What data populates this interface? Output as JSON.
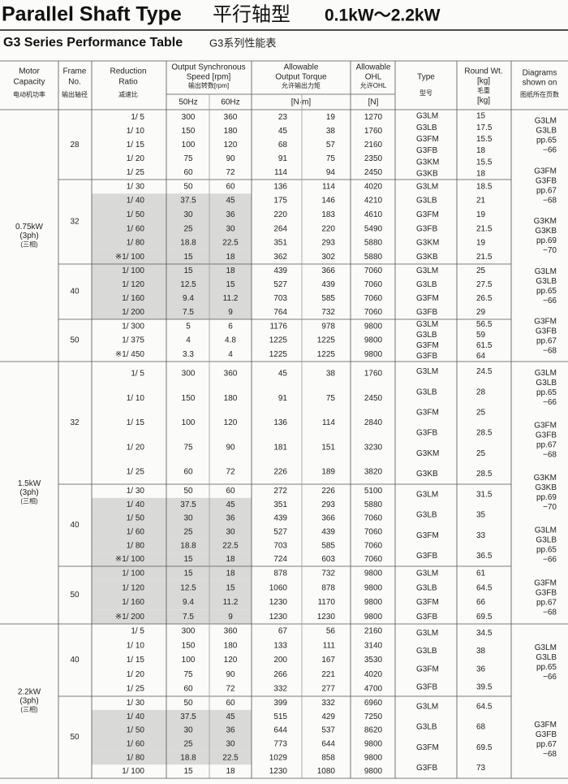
{
  "title": {
    "en": "Parallel Shaft Type",
    "cn": "平行轴型",
    "range": "0.1kW～2.2kW"
  },
  "subtitle": {
    "en": "G3 Series Performance Table",
    "cn": "G3系列性能表"
  },
  "header": {
    "motor": {
      "en": [
        "Motor",
        "Capacity"
      ],
      "cn": "电动机功率"
    },
    "frame": {
      "en": [
        "Frame",
        "No."
      ],
      "cn": "输出轴径"
    },
    "ratio": {
      "en": [
        "Reduction",
        "Ratio"
      ],
      "cn": "减速比"
    },
    "speed": {
      "en": [
        "Output Synchronous",
        "Speed [rpm]"
      ],
      "cn": "输出转数[rpm]",
      "sub": [
        "50Hz",
        "60Hz"
      ]
    },
    "torque": {
      "en": [
        "Allowable",
        "Output Torque"
      ],
      "cn": "允许输出力矩",
      "unit": "[N·m]"
    },
    "ohl": {
      "en": [
        "Allowable",
        "OHL"
      ],
      "cn": "允许OHL",
      "unit": "[N]"
    },
    "type": {
      "en": [
        "Type"
      ],
      "cn": "型号"
    },
    "weight": {
      "en": [
        "Round Wt.",
        "[kg]"
      ],
      "cn": "毛重",
      "unit": "[kg]"
    },
    "diagrams": {
      "en": [
        "Diagrams",
        "shown on"
      ],
      "cn": "图纸所在页数"
    }
  },
  "sections": [
    {
      "motor": [
        "0.75kW",
        "(3ph)",
        "(三相)"
      ],
      "frames": [
        {
          "frame": 28,
          "rows": [
            {
              "cells": [
                "1/ 5",
                300,
                360,
                23,
                19,
                1270
              ]
            },
            {
              "cells": [
                "1/ 10",
                150,
                180,
                45,
                38,
                1760
              ]
            },
            {
              "cells": [
                "1/ 15",
                100,
                120,
                68,
                57,
                2160
              ]
            },
            {
              "cells": [
                "1/ 20",
                75,
                90,
                91,
                75,
                2350
              ]
            },
            {
              "cells": [
                "1/ 25",
                60,
                72,
                114,
                94,
                2450
              ]
            }
          ],
          "types": [
            "G3LM",
            "G3LB",
            "G3FM",
            "G3FB",
            "G3KM",
            "G3KB"
          ],
          "weights": [
            15,
            17.5,
            15.5,
            18,
            15.5,
            18
          ]
        },
        {
          "frame": 32,
          "rows": [
            {
              "cells": [
                "1/ 30",
                50,
                60,
                136,
                114,
                4020
              ]
            },
            {
              "cells": [
                "1/ 40",
                37.5,
                45,
                175,
                146,
                4210
              ],
              "shaded": true
            },
            {
              "cells": [
                "1/ 50",
                30,
                36,
                220,
                183,
                4610
              ],
              "shaded": true
            },
            {
              "cells": [
                "1/ 60",
                25,
                30,
                264,
                220,
                5490
              ],
              "shaded": true
            },
            {
              "cells": [
                "1/ 80",
                18.8,
                22.5,
                351,
                293,
                5880
              ],
              "shaded": true
            },
            {
              "cells": [
                "※1/ 100",
                15,
                18,
                362,
                302,
                5880
              ],
              "shaded": true
            }
          ],
          "types": [
            "G3LM",
            "G3LB",
            "G3FM",
            "G3FB",
            "G3KM",
            "G3KB"
          ],
          "weights": [
            18.5,
            21,
            19,
            21.5,
            19,
            21.5
          ]
        },
        {
          "frame": 40,
          "rows": [
            {
              "cells": [
                "1/ 100",
                15,
                18,
                439,
                366,
                7060
              ],
              "shaded": true
            },
            {
              "cells": [
                "1/ 120",
                12.5,
                15,
                527,
                439,
                7060
              ],
              "shaded": true
            },
            {
              "cells": [
                "1/ 160",
                9.4,
                11.2,
                703,
                585,
                7060
              ],
              "shaded": true
            },
            {
              "cells": [
                "1/ 200",
                7.5,
                9,
                764,
                732,
                7060
              ],
              "shaded": true
            }
          ],
          "types": [
            "G3LM",
            "G3LB",
            "G3FM",
            "G3FB"
          ],
          "weights": [
            25,
            27.5,
            26.5,
            29
          ]
        },
        {
          "frame": 50,
          "rows": [
            {
              "cells": [
                "1/ 300",
                5,
                6,
                1176,
                978,
                9800
              ]
            },
            {
              "cells": [
                "1/ 375",
                4,
                4.8,
                1225,
                1225,
                9800
              ]
            },
            {
              "cells": [
                "※1/ 450",
                3.3,
                4,
                1225,
                1225,
                9800
              ]
            }
          ],
          "types": [
            "G3LM",
            "G3LB",
            "G3FM",
            "G3FB"
          ],
          "weights": [
            56.5,
            59,
            61.5,
            64
          ]
        }
      ],
      "diagrams": [
        [
          "G3LM",
          "G3LB",
          "pp.65",
          "−66"
        ],
        [
          "G3FM",
          "G3FB",
          "pp.67",
          "−68"
        ],
        [
          "G3KM",
          "G3KB",
          "pp.69",
          "−70"
        ],
        [
          "G3LM",
          "G3LB",
          "pp.65",
          "−66"
        ],
        [
          "G3FM",
          "G3FB",
          "pp.67",
          "−68"
        ]
      ]
    },
    {
      "motor": [
        "1.5kW",
        "(3ph)",
        "(三相)"
      ],
      "frames": [
        {
          "frame": 32,
          "rows": [
            {
              "cells": [
                "1/ 5",
                300,
                360,
                45,
                38,
                1760
              ]
            },
            {
              "cells": [
                "1/ 10",
                150,
                180,
                91,
                75,
                2450
              ]
            },
            {
              "cells": [
                "1/ 15",
                100,
                120,
                136,
                114,
                2840
              ]
            },
            {
              "cells": [
                "1/ 20",
                75,
                90,
                181,
                151,
                3230
              ]
            },
            {
              "cells": [
                "1/ 25",
                60,
                72,
                226,
                189,
                3820
              ]
            }
          ],
          "types": [
            "G3LM",
            "G3LB",
            "G3FM",
            "G3FB",
            "G3KM",
            "G3KB"
          ],
          "weights": [
            24.5,
            28,
            25,
            28.5,
            25,
            28.5
          ]
        },
        {
          "frame": 40,
          "rows": [
            {
              "cells": [
                "1/ 30",
                50,
                60,
                272,
                226,
                5100
              ]
            },
            {
              "cells": [
                "1/ 40",
                37.5,
                45,
                351,
                293,
                5880
              ],
              "shaded": true
            },
            {
              "cells": [
                "1/ 50",
                30,
                36,
                439,
                366,
                7060
              ],
              "shaded": true
            },
            {
              "cells": [
                "1/ 60",
                25,
                30,
                527,
                439,
                7060
              ],
              "shaded": true
            },
            {
              "cells": [
                "1/ 80",
                18.8,
                22.5,
                703,
                585,
                7060
              ],
              "shaded": true
            },
            {
              "cells": [
                "※1/ 100",
                15,
                18,
                724,
                603,
                7060
              ],
              "shaded": true
            }
          ],
          "types": [
            "G3LM",
            "G3LB",
            "G3FM",
            "G3FB"
          ],
          "weights": [
            31.5,
            35,
            33,
            36.5
          ]
        },
        {
          "frame": 50,
          "rows": [
            {
              "cells": [
                "1/ 100",
                15,
                18,
                878,
                732,
                9800
              ],
              "shaded": true
            },
            {
              "cells": [
                "1/ 120",
                12.5,
                15,
                1060,
                878,
                9800
              ],
              "shaded": true
            },
            {
              "cells": [
                "1/ 160",
                9.4,
                11.2,
                1230,
                1170,
                9800
              ],
              "shaded": true
            },
            {
              "cells": [
                "※1/ 200",
                7.5,
                9,
                1230,
                1230,
                9800
              ],
              "shaded": true
            }
          ],
          "types": [
            "G3LM",
            "G3LB",
            "G3FM",
            "G3FB"
          ],
          "weights": [
            61,
            64.5,
            66,
            69.5
          ]
        }
      ],
      "diagrams": [
        [
          "G3LM",
          "G3LB",
          "pp.65",
          "−66"
        ],
        [
          "G3FM",
          "G3FB",
          "pp.67",
          "−68"
        ],
        [
          "G3KM",
          "G3KB",
          "pp.69",
          "−70"
        ],
        [
          "G3LM",
          "G3LB",
          "pp.65",
          "−66"
        ],
        [
          "G3FM",
          "G3FB",
          "pp.67",
          "−68"
        ]
      ]
    },
    {
      "motor": [
        "2.2kW",
        "(3ph)",
        "(三相)"
      ],
      "frames": [
        {
          "frame": 40,
          "rows": [
            {
              "cells": [
                "1/ 5",
                300,
                360,
                67,
                56,
                2160
              ]
            },
            {
              "cells": [
                "1/ 10",
                150,
                180,
                133,
                111,
                3140
              ]
            },
            {
              "cells": [
                "1/ 15",
                100,
                120,
                200,
                167,
                3530
              ]
            },
            {
              "cells": [
                "1/ 20",
                75,
                90,
                266,
                221,
                4020
              ]
            },
            {
              "cells": [
                "1/ 25",
                60,
                72,
                332,
                277,
                4700
              ]
            }
          ],
          "types": [
            "G3LM",
            "G3LB",
            "G3FM",
            "G3FB"
          ],
          "weights": [
            34.5,
            38,
            36,
            39.5
          ]
        },
        {
          "frame": 50,
          "rows": [
            {
              "cells": [
                "1/ 30",
                50,
                60,
                399,
                332,
                6960
              ]
            },
            {
              "cells": [
                "1/ 40",
                37.5,
                45,
                515,
                429,
                7250
              ],
              "shaded": true
            },
            {
              "cells": [
                "1/ 50",
                30,
                36,
                644,
                537,
                8620
              ],
              "shaded": true
            },
            {
              "cells": [
                "1/ 60",
                25,
                30,
                773,
                644,
                9800
              ],
              "shaded": true
            },
            {
              "cells": [
                "1/ 80",
                18.8,
                22.5,
                1029,
                858,
                9800
              ],
              "shaded": true
            },
            {
              "cells": [
                "1/ 100",
                15,
                18,
                1230,
                1080,
                9800
              ]
            }
          ],
          "types": [
            "G3LM",
            "G3LB",
            "G3FM",
            "G3FB"
          ],
          "weights": [
            64.5,
            68,
            69.5,
            73
          ]
        }
      ],
      "diagrams": [
        [
          "G3LM",
          "G3LB",
          "pp.65",
          "−66"
        ],
        [
          "G3FM",
          "G3FB",
          "pp.67",
          "−68"
        ]
      ]
    }
  ]
}
